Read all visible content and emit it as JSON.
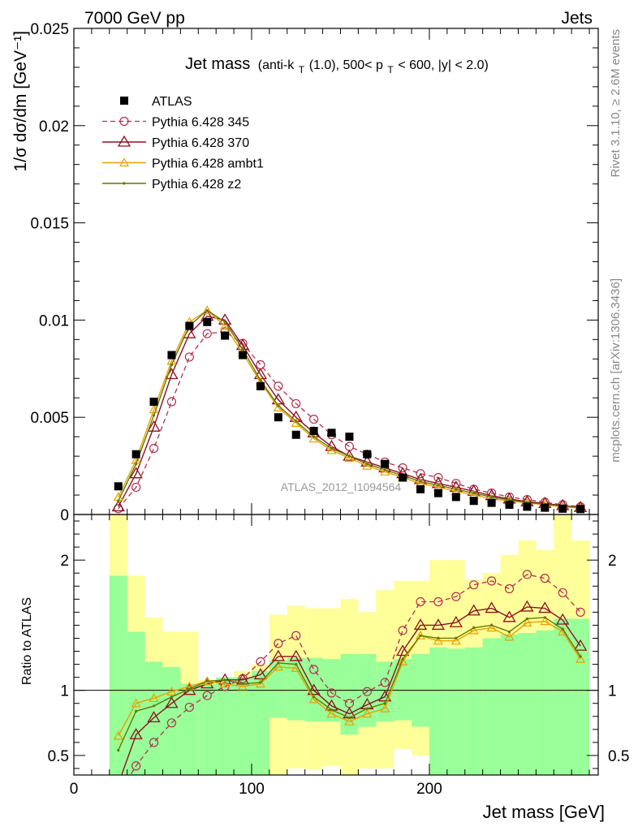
{
  "header": {
    "left": "7000 GeV pp",
    "right": "Jets",
    "side_top": "Rivet 3.1.10, ≥ 2.6M events",
    "side_bottom": "mcplots.cern.ch [arXiv:1306.3436]"
  },
  "colors": {
    "data": "#000000",
    "p345": "#b03050",
    "p370": "#8b1020",
    "ambt1": "#e8a000",
    "z2": "#667700",
    "band_inner": "#99ff99",
    "band_outer": "#ffff99"
  },
  "chart_data": [
    {
      "type": "line",
      "title_main": "Jet mass",
      "title_anti": "(anti-k",
      "title_T": "T",
      "title_mid": "(1.0), 500< p",
      "title_T2": "T",
      "title_end": " < 600, |y| < 2.0)",
      "ylabel": "1/σ dσ/dm [GeV⁻¹]",
      "xlim": [
        0,
        295
      ],
      "ylim": [
        0,
        0.025
      ],
      "yticks": [
        0,
        0.005,
        0.01,
        0.015,
        0.02,
        0.025
      ],
      "ytick_labels": [
        "0",
        "0.005",
        "0.01",
        "0.015",
        "0.02",
        "0.025"
      ],
      "watermark": "ATLAS_2012_I1094564",
      "legend_position": "top-left",
      "legend": [
        {
          "key": "atlas",
          "label": "ATLAS"
        },
        {
          "key": "p345",
          "label": "Pythia 6.428 345"
        },
        {
          "key": "p370",
          "label": "Pythia 6.428 370"
        },
        {
          "key": "ambt1",
          "label": "Pythia 6.428 ambt1"
        },
        {
          "key": "z2",
          "label": "Pythia 6.428 z2"
        }
      ],
      "x": [
        25,
        35,
        45,
        55,
        65,
        75,
        85,
        95,
        105,
        115,
        125,
        135,
        145,
        155,
        165,
        175,
        185,
        195,
        205,
        215,
        225,
        235,
        245,
        255,
        265,
        275,
        285
      ],
      "atlas": [
        0.00145,
        0.0031,
        0.0058,
        0.0082,
        0.0097,
        0.0099,
        0.0092,
        0.0082,
        0.0066,
        0.005,
        0.0041,
        0.0043,
        0.0042,
        0.004,
        0.0031,
        0.0026,
        0.0019,
        0.0013,
        0.0011,
        0.0009,
        0.0007,
        0.0006,
        0.0005,
        0.0004,
        0.00035,
        0.0003,
        0.00028
      ],
      "series": [
        {
          "key": "p345",
          "values": [
            0.0003,
            0.0014,
            0.0034,
            0.0058,
            0.0081,
            0.0093,
            0.0094,
            0.0088,
            0.0077,
            0.0066,
            0.0057,
            0.0049,
            0.0041,
            0.0035,
            0.0031,
            0.0027,
            0.0024,
            0.0021,
            0.0019,
            0.0016,
            0.0013,
            0.0011,
            0.0009,
            0.00077,
            0.00063,
            0.0005,
            0.0004
          ]
        },
        {
          "key": "p370",
          "values": [
            0.0004,
            0.0021,
            0.0045,
            0.0072,
            0.0093,
            0.0102,
            0.01,
            0.0087,
            0.0072,
            0.0059,
            0.005,
            0.0042,
            0.0035,
            0.003,
            0.0027,
            0.0024,
            0.0021,
            0.0018,
            0.0016,
            0.0014,
            0.0012,
            0.00097,
            0.0008,
            0.00066,
            0.00057,
            0.00046,
            0.00036
          ]
        },
        {
          "key": "ambt1",
          "values": [
            0.0009,
            0.0028,
            0.0054,
            0.0079,
            0.0099,
            0.0105,
            0.0097,
            0.0083,
            0.0068,
            0.0055,
            0.0047,
            0.0039,
            0.0033,
            0.0029,
            0.0025,
            0.0022,
            0.0019,
            0.0016,
            0.0014,
            0.0012,
            0.001,
            0.0008,
            0.0007,
            0.0006,
            0.0005,
            0.0004,
            0.00033
          ]
        },
        {
          "key": "z2",
          "values": [
            0.0007,
            0.0026,
            0.0051,
            0.0077,
            0.0097,
            0.0105,
            0.0099,
            0.0085,
            0.0069,
            0.0056,
            0.0048,
            0.004,
            0.0034,
            0.003,
            0.0026,
            0.0023,
            0.002,
            0.0017,
            0.0015,
            0.0013,
            0.0011,
            0.0009,
            0.00075,
            0.00062,
            0.00053,
            0.00043,
            0.00035
          ]
        }
      ]
    },
    {
      "type": "line",
      "ylabel": "Ratio to ATLAS",
      "xlabel": "Jet mass [GeV]",
      "xlim": [
        0,
        295
      ],
      "ylim": [
        0.35,
        2.35
      ],
      "xticks": [
        0,
        100,
        200
      ],
      "xtick_labels": [
        "0",
        "100",
        "200"
      ],
      "yticks": [
        0.5,
        1,
        2
      ],
      "ytick_labels": [
        "0.5",
        "1",
        "2"
      ],
      "band_edges": [
        20,
        30,
        40,
        50,
        60,
        70,
        80,
        90,
        100,
        110,
        120,
        130,
        140,
        150,
        160,
        170,
        180,
        190,
        200,
        210,
        220,
        230,
        240,
        250,
        260,
        270,
        280,
        290
      ],
      "band_inner": [
        [
          0.35,
          1.88
        ],
        [
          0.35,
          1.45
        ],
        [
          0.35,
          1.22
        ],
        [
          0.35,
          1.18
        ],
        [
          0.35,
          1.05
        ],
        [
          0.35,
          1.05
        ],
        [
          0.35,
          1.1
        ],
        [
          0.35,
          1.1
        ],
        [
          0.35,
          1.15
        ],
        [
          0.79,
          1.23
        ],
        [
          0.77,
          1.25
        ],
        [
          0.76,
          1.25
        ],
        [
          0.76,
          1.24
        ],
        [
          0.66,
          1.28
        ],
        [
          0.72,
          1.28
        ],
        [
          0.76,
          1.22
        ],
        [
          0.77,
          1.24
        ],
        [
          0.72,
          1.28
        ],
        [
          0.35,
          1.33
        ],
        [
          0.35,
          1.32
        ],
        [
          0.35,
          1.33
        ],
        [
          0.35,
          1.4
        ],
        [
          0.35,
          1.43
        ],
        [
          0.35,
          1.44
        ],
        [
          0.35,
          1.46
        ],
        [
          0.35,
          1.55
        ],
        [
          0.35,
          1.55
        ]
      ],
      "band_outer": [
        [
          0.35,
          2.35
        ],
        [
          0.35,
          1.88
        ],
        [
          0.35,
          1.56
        ],
        [
          0.35,
          1.45
        ],
        [
          0.35,
          1.45
        ],
        [
          0.35,
          1.08
        ],
        [
          0.35,
          1.07
        ],
        [
          0.35,
          1.15
        ],
        [
          0.35,
          1.2
        ],
        [
          0.35,
          1.58
        ],
        [
          0.4,
          1.65
        ],
        [
          0.39,
          1.63
        ],
        [
          0.42,
          1.63
        ],
        [
          0.35,
          1.7
        ],
        [
          0.4,
          1.6
        ],
        [
          0.4,
          1.77
        ],
        [
          0.55,
          1.84
        ],
        [
          0.5,
          1.84
        ],
        [
          0.48,
          2.0
        ],
        [
          0.35,
          2.0
        ],
        [
          0.35,
          1.85
        ],
        [
          0.35,
          1.9
        ],
        [
          0.35,
          2.04
        ],
        [
          0.35,
          2.15
        ],
        [
          0.35,
          2.08
        ],
        [
          0.35,
          2.35
        ],
        [
          0.35,
          2.15
        ]
      ],
      "series": [
        {
          "key": "p345",
          "values": [
            0.2,
            0.42,
            0.6,
            0.75,
            0.87,
            0.96,
            1.03,
            1.09,
            1.22,
            1.36,
            1.42,
            1.16,
            0.98,
            0.9,
            0.99,
            1.06,
            1.46,
            1.68,
            1.68,
            1.72,
            1.81,
            1.84,
            1.78,
            1.89,
            1.86,
            1.75,
            1.6
          ]
        },
        {
          "key": "p370",
          "values": [
            0.28,
            0.66,
            0.79,
            0.9,
            1.0,
            1.05,
            1.08,
            1.08,
            1.12,
            1.26,
            1.26,
            1.0,
            0.88,
            0.82,
            0.89,
            0.95,
            1.3,
            1.5,
            1.5,
            1.52,
            1.61,
            1.63,
            1.56,
            1.64,
            1.63,
            1.54,
            1.34
          ]
        },
        {
          "key": "ambt1",
          "values": [
            0.65,
            0.9,
            0.94,
            0.99,
            1.03,
            1.07,
            1.05,
            1.03,
            1.05,
            1.18,
            1.17,
            0.93,
            0.82,
            0.76,
            0.82,
            0.86,
            1.22,
            1.42,
            1.38,
            1.38,
            1.46,
            1.48,
            1.41,
            1.52,
            1.53,
            1.45,
            1.24
          ]
        },
        {
          "key": "z2",
          "values": [
            0.54,
            0.84,
            0.88,
            0.95,
            1.01,
            1.07,
            1.08,
            1.05,
            1.06,
            1.21,
            1.2,
            0.95,
            0.85,
            0.79,
            0.86,
            0.9,
            1.24,
            1.42,
            1.4,
            1.4,
            1.48,
            1.5,
            1.45,
            1.55,
            1.56,
            1.47,
            1.26
          ]
        }
      ]
    }
  ]
}
